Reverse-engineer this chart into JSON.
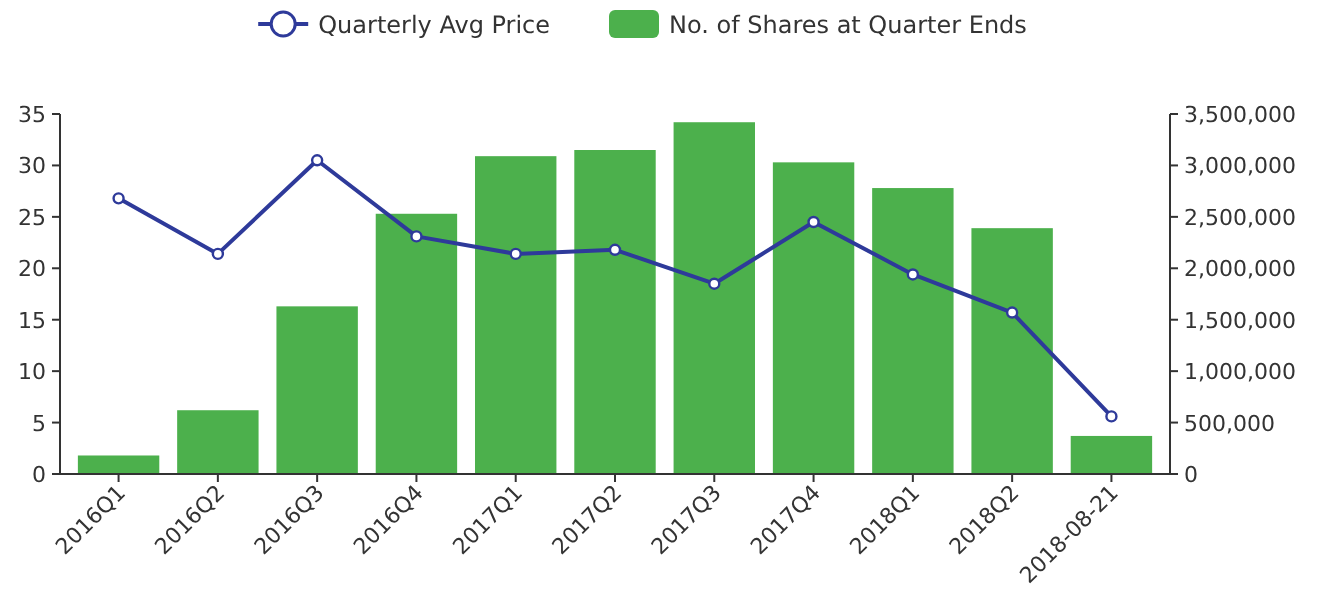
{
  "chart_data": {
    "type": "bar",
    "categories": [
      "2016Q1",
      "2016Q2",
      "2016Q3",
      "2016Q4",
      "2017Q1",
      "2017Q2",
      "2017Q3",
      "2017Q4",
      "2018Q1",
      "2018Q2",
      "2018-08-21"
    ],
    "series": [
      {
        "name": "Quarterly Avg Price",
        "type": "line",
        "color": "#2e3a9a",
        "values": [
          26.8,
          21.4,
          30.5,
          23.1,
          21.4,
          21.8,
          18.5,
          24.5,
          19.4,
          15.7,
          5.6
        ]
      },
      {
        "name": "No. of Shares at Quarter Ends",
        "axis": "y2",
        "color": "#4cb04c",
        "values": [
          180000,
          620000,
          1630000,
          2530000,
          3090000,
          3150000,
          3420000,
          3030000,
          2780000,
          2390000,
          370000
        ]
      }
    ],
    "ylim": [
      0,
      35
    ],
    "yticks": [
      0,
      5,
      10,
      15,
      20,
      25,
      30,
      35
    ],
    "y2lim": [
      0,
      3500000
    ],
    "y2ticks": [
      {
        "value": 0,
        "label": "0"
      },
      {
        "value": 500000,
        "label": "500,000"
      },
      {
        "value": 1000000,
        "label": "1,000,000"
      },
      {
        "value": 1500000,
        "label": "1,500,000"
      },
      {
        "value": 2000000,
        "label": "2,000,000"
      },
      {
        "value": 2500000,
        "label": "2,500,000"
      },
      {
        "value": 3000000,
        "label": "3,000,000"
      },
      {
        "value": 3500000,
        "label": "3,500,000"
      }
    ],
    "legend": "top",
    "marker": "circle",
    "grid": false
  }
}
